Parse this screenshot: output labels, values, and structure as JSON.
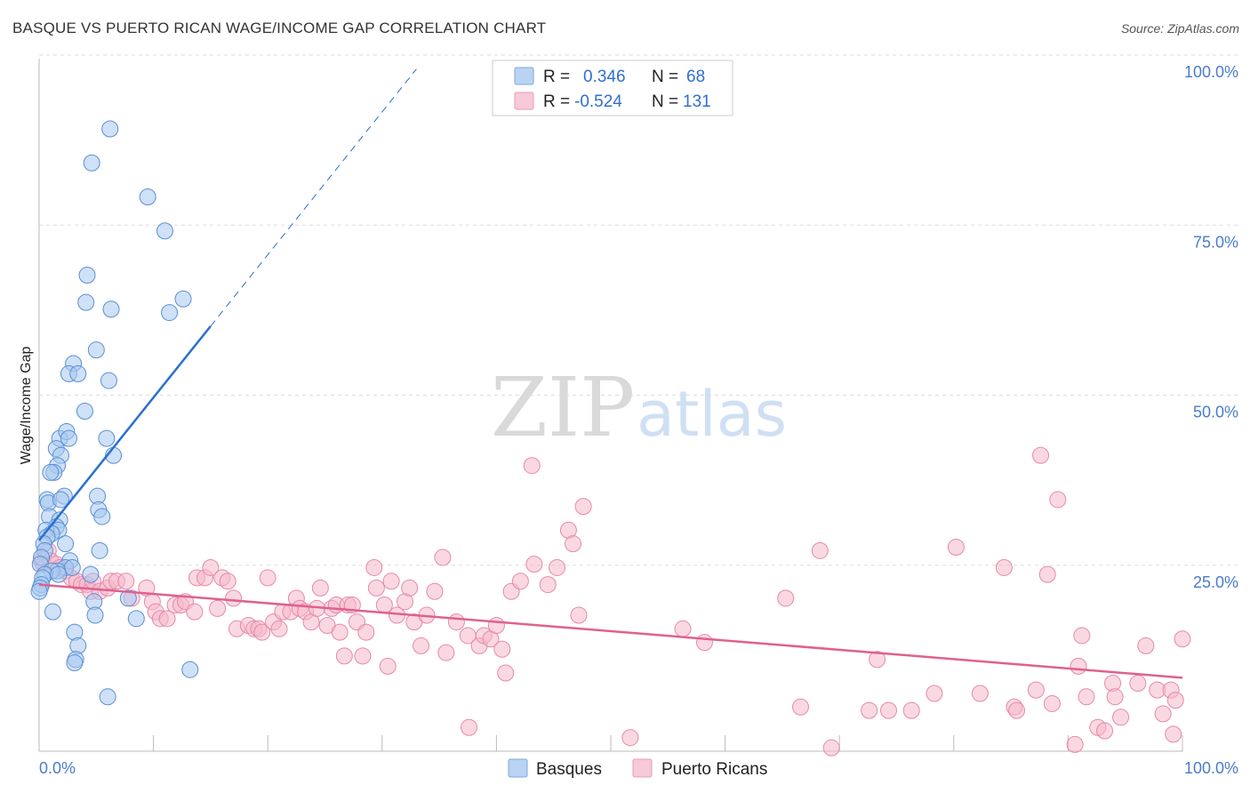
{
  "header": {
    "title": "BASQUE VS PUERTO RICAN WAGE/INCOME GAP CORRELATION CHART",
    "source": "Source: ZipAtlas.com"
  },
  "watermark": {
    "zip": "ZIP",
    "atlas": "atlas"
  },
  "colors": {
    "basque_fill": "#a8c8f0",
    "basque_stroke": "#5b8fd4",
    "basque_line": "#2a6fcf",
    "pr_fill": "#f5b8cb",
    "pr_stroke": "#e58aa8",
    "pr_line": "#e06090",
    "axis_label": "#4a7cc9",
    "grid": "#dddddd"
  },
  "stats_legend": {
    "rows": [
      {
        "r_label": "R =",
        "r_value": "0.346",
        "n_label": "N =",
        "n_value": "68"
      },
      {
        "r_label": "R =",
        "r_value": "-0.524",
        "n_label": "N =",
        "n_value": "131"
      }
    ]
  },
  "bottom_legend": {
    "items": [
      "Basques",
      "Puerto Ricans"
    ]
  },
  "chart_data": {
    "type": "scatter",
    "title": "BASQUE VS PUERTO RICAN WAGE/INCOME GAP CORRELATION CHART",
    "xlabel": "",
    "ylabel": "Wage/Income Gap",
    "xlim": [
      0,
      100
    ],
    "ylim": [
      0,
      100
    ],
    "x_tick_labels": [
      "0.0%",
      "100.0%"
    ],
    "y_tick_labels": [
      "25.0%",
      "50.0%",
      "75.0%",
      "100.0%"
    ],
    "y_ticks": [
      25,
      50,
      75,
      100
    ],
    "grid": true,
    "series": [
      {
        "name": "Basques",
        "R": 0.346,
        "N": 68,
        "trend": {
          "x0": 0,
          "y0": 31,
          "x1": 15,
          "y1": 62.5,
          "dash_to_x": 33
        },
        "points": [
          [
            6.2,
            91.5
          ],
          [
            4.6,
            86.5
          ],
          [
            9.5,
            81.5
          ],
          [
            11,
            76.5
          ],
          [
            4.2,
            70
          ],
          [
            4.1,
            66
          ],
          [
            6.3,
            65
          ],
          [
            11.4,
            64.5
          ],
          [
            12.6,
            66.5
          ],
          [
            5,
            59
          ],
          [
            3,
            57
          ],
          [
            2.6,
            55.5
          ],
          [
            3.4,
            55.5
          ],
          [
            6.1,
            54.5
          ],
          [
            4,
            50
          ],
          [
            1.8,
            46
          ],
          [
            2.4,
            47
          ],
          [
            2.6,
            46
          ],
          [
            5.9,
            46
          ],
          [
            1.5,
            44.5
          ],
          [
            1.9,
            43.5
          ],
          [
            6.5,
            43.5
          ],
          [
            1.6,
            42
          ],
          [
            1.3,
            41
          ],
          [
            1,
            41
          ],
          [
            2.2,
            37.5
          ],
          [
            5.1,
            37.5
          ],
          [
            0.7,
            37
          ],
          [
            0.8,
            36.5
          ],
          [
            1.9,
            37
          ],
          [
            5.2,
            35.5
          ],
          [
            5.5,
            34.5
          ],
          [
            0.9,
            34.5
          ],
          [
            1.8,
            34
          ],
          [
            1.5,
            33
          ],
          [
            1.7,
            32.5
          ],
          [
            0.6,
            32.5
          ],
          [
            1.1,
            32
          ],
          [
            0.7,
            31.5
          ],
          [
            2.3,
            30.5
          ],
          [
            0.4,
            30.5
          ],
          [
            0.5,
            29.5
          ],
          [
            5.3,
            29.5
          ],
          [
            0.2,
            28.5
          ],
          [
            0.1,
            27.5
          ],
          [
            2.7,
            28
          ],
          [
            2.3,
            27
          ],
          [
            2.9,
            27
          ],
          [
            1.6,
            26.5
          ],
          [
            1.1,
            26.5
          ],
          [
            0.5,
            26
          ],
          [
            1.7,
            26
          ],
          [
            0.3,
            25.5
          ],
          [
            4.5,
            26
          ],
          [
            0.2,
            24.5
          ],
          [
            0.1,
            24
          ],
          [
            0,
            23.5
          ],
          [
            4.8,
            22
          ],
          [
            7.8,
            22.5
          ],
          [
            1.2,
            20.5
          ],
          [
            4.9,
            20
          ],
          [
            8.5,
            19.5
          ],
          [
            3.1,
            17.5
          ],
          [
            3.4,
            15.5
          ],
          [
            3.2,
            13.5
          ],
          [
            3.1,
            13
          ],
          [
            13.2,
            12
          ],
          [
            6,
            8
          ]
        ]
      },
      {
        "name": "Puerto Ricans",
        "R": -0.524,
        "N": 131,
        "trend": {
          "x0": 0,
          "y0": 24.5,
          "x1": 100,
          "y1": 10.8
        },
        "points": [
          [
            0.2,
            28
          ],
          [
            0.8,
            29.5
          ],
          [
            0.4,
            27.5
          ],
          [
            1,
            28
          ],
          [
            1.5,
            27.5
          ],
          [
            1.8,
            27
          ],
          [
            2.3,
            26.5
          ],
          [
            2.8,
            25.5
          ],
          [
            3.3,
            25
          ],
          [
            3.7,
            24.5
          ],
          [
            4.2,
            24.5
          ],
          [
            4.5,
            23.5
          ],
          [
            4.7,
            25
          ],
          [
            5.3,
            23.5
          ],
          [
            6,
            24
          ],
          [
            6.3,
            25
          ],
          [
            6.8,
            25
          ],
          [
            7.6,
            25
          ],
          [
            8.1,
            22.5
          ],
          [
            9.4,
            24
          ],
          [
            9.9,
            22
          ],
          [
            10.2,
            20.5
          ],
          [
            10.6,
            19.5
          ],
          [
            11.2,
            19.5
          ],
          [
            11.9,
            21.5
          ],
          [
            12.4,
            21.5
          ],
          [
            12.8,
            22
          ],
          [
            13.6,
            20.5
          ],
          [
            13.8,
            25.5
          ],
          [
            14.5,
            25.5
          ],
          [
            15,
            27
          ],
          [
            15.6,
            21
          ],
          [
            16,
            25.5
          ],
          [
            16.5,
            25
          ],
          [
            17,
            22.5
          ],
          [
            17.3,
            18
          ],
          [
            18.3,
            18.5
          ],
          [
            18.8,
            18
          ],
          [
            19.2,
            18
          ],
          [
            19.5,
            17.5
          ],
          [
            20,
            25.5
          ],
          [
            20.5,
            19
          ],
          [
            21,
            18
          ],
          [
            21.3,
            20.5
          ],
          [
            22,
            20.5
          ],
          [
            22.5,
            22.5
          ],
          [
            22.8,
            21
          ],
          [
            23.3,
            20.5
          ],
          [
            23.8,
            19
          ],
          [
            24.3,
            21
          ],
          [
            24.6,
            24
          ],
          [
            25.2,
            18.5
          ],
          [
            25.6,
            21
          ],
          [
            26,
            21.5
          ],
          [
            26.3,
            17.5
          ],
          [
            26.7,
            14
          ],
          [
            27,
            21.5
          ],
          [
            27.4,
            21.5
          ],
          [
            27.8,
            19
          ],
          [
            28.3,
            14
          ],
          [
            28.6,
            17.5
          ],
          [
            29.3,
            27
          ],
          [
            29.5,
            24
          ],
          [
            30.2,
            21.5
          ],
          [
            30.5,
            12.5
          ],
          [
            30.8,
            25
          ],
          [
            31.3,
            20
          ],
          [
            32,
            22
          ],
          [
            32.4,
            24
          ],
          [
            32.8,
            19
          ],
          [
            33.4,
            15.5
          ],
          [
            33.9,
            20
          ],
          [
            34.6,
            23.5
          ],
          [
            35.3,
            28.5
          ],
          [
            35.6,
            14.5
          ],
          [
            36.5,
            19
          ],
          [
            37.5,
            17
          ],
          [
            37.6,
            3.5
          ],
          [
            38.5,
            15.5
          ],
          [
            38.9,
            17
          ],
          [
            39.5,
            16.5
          ],
          [
            40,
            18.5
          ],
          [
            40.5,
            15
          ],
          [
            40.8,
            11.5
          ],
          [
            41.3,
            23.5
          ],
          [
            42.1,
            25
          ],
          [
            43.1,
            42
          ],
          [
            43.3,
            27.5
          ],
          [
            44.5,
            24.5
          ],
          [
            45.3,
            27
          ],
          [
            46.3,
            32.5
          ],
          [
            46.7,
            30.5
          ],
          [
            47.2,
            20
          ],
          [
            47.6,
            36
          ],
          [
            51.7,
            2
          ],
          [
            56.3,
            18
          ],
          [
            58.2,
            16
          ],
          [
            65.3,
            22.5
          ],
          [
            66.6,
            6.5
          ],
          [
            68.3,
            29.5
          ],
          [
            69.3,
            0.5
          ],
          [
            72.6,
            6
          ],
          [
            73.3,
            13.5
          ],
          [
            74.3,
            6
          ],
          [
            76.3,
            6
          ],
          [
            78.3,
            8.5
          ],
          [
            80.2,
            30
          ],
          [
            82.3,
            8.5
          ],
          [
            84.4,
            27
          ],
          [
            85.3,
            6.5
          ],
          [
            85.5,
            6
          ],
          [
            87.2,
            9
          ],
          [
            87.6,
            43.5
          ],
          [
            88.2,
            26
          ],
          [
            88.6,
            7
          ],
          [
            89.1,
            37
          ],
          [
            90.6,
            1
          ],
          [
            90.9,
            12.5
          ],
          [
            91.2,
            17
          ],
          [
            91.6,
            8
          ],
          [
            92.6,
            3.5
          ],
          [
            93.2,
            3
          ],
          [
            93.9,
            10
          ],
          [
            94.1,
            8
          ],
          [
            94.6,
            5
          ],
          [
            96.1,
            10
          ],
          [
            96.8,
            15.5
          ],
          [
            97.8,
            9
          ],
          [
            98.3,
            5.5
          ],
          [
            99,
            9
          ],
          [
            99.4,
            7.5
          ],
          [
            100,
            16.5
          ],
          [
            99.2,
            2.5
          ]
        ]
      }
    ]
  }
}
